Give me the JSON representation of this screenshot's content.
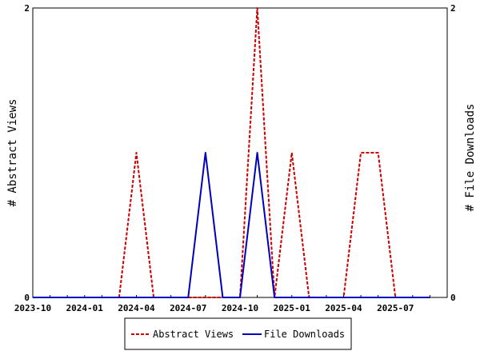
{
  "chart_data": {
    "type": "line",
    "x": [
      "2023-10",
      "2023-11",
      "2023-12",
      "2024-01",
      "2024-02",
      "2024-03",
      "2024-04",
      "2024-05",
      "2024-06",
      "2024-07",
      "2024-08",
      "2024-09",
      "2024-10",
      "2024-11",
      "2024-12",
      "2025-01",
      "2025-02",
      "2025-03",
      "2025-04",
      "2025-05",
      "2025-06",
      "2025-07",
      "2025-08",
      "2025-09"
    ],
    "x_tick_labels": [
      "2023-10",
      "2024-01",
      "2024-04",
      "2024-07",
      "2024-10",
      "2025-01",
      "2025-04",
      "2025-07"
    ],
    "ylabel_left": "# Abstract Views",
    "ylabel_right": "# File Downloads",
    "ylim_left": [
      0,
      2
    ],
    "ylim_right": [
      0,
      2
    ],
    "y_ticks_left": [
      "0",
      "2"
    ],
    "y_ticks_right": [
      "0",
      "2"
    ],
    "legend_position": "bottom",
    "grid": false,
    "series": [
      {
        "name": "Abstract Views",
        "axis": "left",
        "color": "#cc0000",
        "style": "dashed",
        "values": [
          0,
          0,
          0,
          0,
          0,
          0,
          1,
          0,
          0,
          0,
          0,
          0,
          0,
          2,
          0,
          1,
          0,
          0,
          0,
          1,
          1,
          0,
          0,
          0
        ]
      },
      {
        "name": "File Downloads",
        "axis": "right",
        "color": "#0000bb",
        "style": "solid",
        "values": [
          0,
          0,
          0,
          0,
          0,
          0,
          0,
          0,
          0,
          0,
          1,
          0,
          0,
          1,
          0,
          0,
          0,
          0,
          0,
          0,
          0,
          0,
          0,
          0
        ]
      }
    ]
  }
}
